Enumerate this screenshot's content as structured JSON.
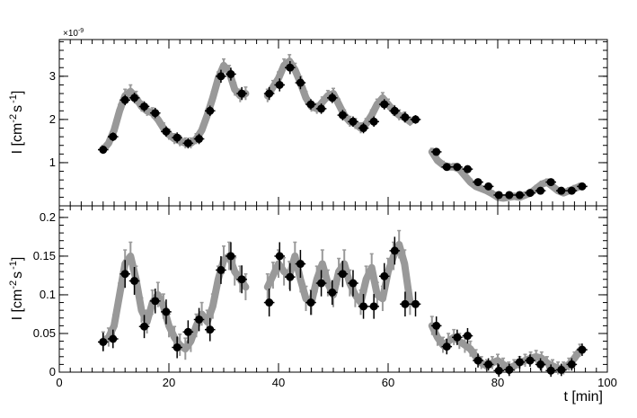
{
  "chart_data": [
    {
      "type": "scatter",
      "panel": "top",
      "ylabel_main": "I [cm",
      "ylabel_exp1": "-2",
      "ylabel_mid": "s",
      "ylabel_exp2": "-1",
      "ylabel_end": "]",
      "scale_note_base": "×10",
      "scale_note_exp": "-9",
      "xlim": [
        0,
        100
      ],
      "ylim": [
        0.0,
        3.85
      ],
      "yticks": [
        "1",
        "2",
        "3"
      ],
      "ytick_values": [
        1,
        2,
        3
      ],
      "series": [
        {
          "style": "band",
          "color": "#999999",
          "x": [
            8,
            9,
            10,
            11,
            12,
            13,
            14,
            15,
            16,
            17,
            18,
            19,
            20,
            21,
            22,
            23,
            24,
            25,
            26,
            27,
            28,
            29,
            30,
            31,
            32,
            33,
            34,
            38,
            39,
            40,
            41,
            42,
            43,
            44,
            45,
            46,
            47,
            48,
            49,
            50,
            51,
            52,
            53,
            54,
            55,
            56,
            57,
            58,
            59,
            60,
            61,
            62,
            63,
            64,
            68,
            69,
            70,
            71,
            72,
            73,
            74,
            75,
            76,
            77,
            78,
            79,
            80,
            81,
            82,
            83,
            84,
            85,
            86,
            87,
            88,
            89,
            90,
            91,
            92,
            93,
            94,
            95
          ],
          "y": [
            1.3,
            1.45,
            1.75,
            2.2,
            2.55,
            2.65,
            2.5,
            2.3,
            2.2,
            2.15,
            2.0,
            1.8,
            1.65,
            1.55,
            1.5,
            1.45,
            1.45,
            1.55,
            1.75,
            2.1,
            2.5,
            2.95,
            3.25,
            3.1,
            2.7,
            2.55,
            2.6,
            2.55,
            2.75,
            2.95,
            3.25,
            3.35,
            3.15,
            2.85,
            2.5,
            2.3,
            2.25,
            2.4,
            2.55,
            2.6,
            2.35,
            2.1,
            1.95,
            1.9,
            1.8,
            1.9,
            2.1,
            2.35,
            2.5,
            2.35,
            2.2,
            2.1,
            2.05,
            1.95,
            1.25,
            1.05,
            0.95,
            0.9,
            0.9,
            0.85,
            0.7,
            0.55,
            0.45,
            0.4,
            0.35,
            0.28,
            0.2,
            0.18,
            0.2,
            0.22,
            0.2,
            0.25,
            0.3,
            0.4,
            0.5,
            0.55,
            0.45,
            0.35,
            0.3,
            0.35,
            0.4,
            0.45
          ],
          "err": [
            0.1,
            0.1,
            0.12,
            0.15,
            0.15,
            0.15,
            0.15,
            0.12,
            0.12,
            0.12,
            0.12,
            0.12,
            0.12,
            0.12,
            0.12,
            0.12,
            0.12,
            0.12,
            0.12,
            0.15,
            0.15,
            0.15,
            0.15,
            0.15,
            0.15,
            0.15,
            0.15,
            0.15,
            0.15,
            0.15,
            0.15,
            0.15,
            0.15,
            0.15,
            0.15,
            0.12,
            0.12,
            0.12,
            0.12,
            0.12,
            0.12,
            0.12,
            0.12,
            0.12,
            0.12,
            0.12,
            0.12,
            0.12,
            0.12,
            0.12,
            0.12,
            0.12,
            0.12,
            0.1,
            0.08,
            0.08,
            0.08,
            0.08,
            0.08,
            0.08,
            0.08,
            0.08,
            0.07,
            0.07,
            0.07,
            0.07,
            0.07,
            0.07,
            0.07,
            0.07,
            0.07,
            0.07,
            0.07,
            0.07,
            0.07,
            0.07,
            0.07,
            0.07,
            0.07,
            0.07,
            0.07,
            0.07
          ]
        },
        {
          "style": "points",
          "color": "#000000",
          "x": [
            8,
            9.8,
            12,
            13.7,
            15.5,
            17.5,
            19.5,
            21.5,
            23.5,
            25.5,
            27.5,
            29.5,
            31.3,
            33.3,
            38.3,
            40.2,
            42.1,
            44,
            45.9,
            47.8,
            49.8,
            51.7,
            53.6,
            55.5,
            57.4,
            59.3,
            61.2,
            63.1,
            65,
            68.8,
            70.7,
            72.6,
            74.5,
            76.4,
            78.3,
            80.2,
            82.1,
            84,
            85.9,
            87.8,
            89.7,
            91.6,
            93.5,
            95.4
          ],
          "y": [
            1.3,
            1.6,
            2.45,
            2.5,
            2.3,
            2.15,
            1.72,
            1.58,
            1.45,
            1.55,
            2.2,
            3.0,
            3.05,
            2.6,
            2.6,
            2.8,
            3.2,
            2.85,
            2.35,
            2.25,
            2.5,
            2.1,
            1.95,
            1.8,
            1.95,
            2.35,
            2.2,
            2.05,
            2.0,
            1.25,
            0.9,
            0.9,
            0.85,
            0.55,
            0.45,
            0.25,
            0.25,
            0.25,
            0.3,
            0.35,
            0.55,
            0.35,
            0.35,
            0.45
          ],
          "xerr": 0.95,
          "yerr": [
            0.08,
            0.1,
            0.12,
            0.12,
            0.12,
            0.12,
            0.12,
            0.12,
            0.12,
            0.12,
            0.12,
            0.15,
            0.15,
            0.15,
            0.15,
            0.15,
            0.15,
            0.15,
            0.12,
            0.12,
            0.12,
            0.12,
            0.12,
            0.12,
            0.12,
            0.12,
            0.12,
            0.12,
            0.1,
            0.08,
            0.08,
            0.08,
            0.08,
            0.07,
            0.07,
            0.07,
            0.07,
            0.07,
            0.07,
            0.07,
            0.07,
            0.07,
            0.07,
            0.07
          ]
        }
      ]
    },
    {
      "type": "scatter",
      "panel": "bottom",
      "ylabel_main": "I [cm",
      "ylabel_exp1": "-2",
      "ylabel_mid": "s",
      "ylabel_exp2": "-1",
      "ylabel_end": "]",
      "xlabel": "t [min]",
      "xlim": [
        0,
        100
      ],
      "ylim": [
        0.0,
        0.215
      ],
      "xticks": [
        "0",
        "20",
        "40",
        "60",
        "80",
        "100"
      ],
      "xtick_values": [
        0,
        20,
        40,
        60,
        80,
        100
      ],
      "yticks": [
        "0",
        "0.05",
        "0.1",
        "0.15",
        "0.2"
      ],
      "ytick_values": [
        0,
        0.05,
        0.1,
        0.15,
        0.2
      ],
      "series": [
        {
          "style": "band",
          "color": "#999999",
          "x": [
            8,
            9,
            10,
            11,
            12,
            13,
            14,
            15,
            16,
            17,
            18,
            19,
            20,
            21,
            22,
            23,
            24,
            25,
            26,
            27,
            28,
            29,
            30,
            31,
            32,
            33,
            34,
            38,
            39,
            40,
            41,
            42,
            43,
            44,
            45,
            46,
            47,
            48,
            49,
            50,
            51,
            52,
            53,
            54,
            55,
            56,
            57,
            58,
            59,
            60,
            61,
            62,
            63,
            64,
            68,
            69,
            70,
            71,
            72,
            73,
            74,
            75,
            76,
            77,
            78,
            79,
            80,
            81,
            82,
            83,
            84,
            85,
            86,
            87,
            88,
            89,
            90,
            91,
            92,
            93,
            94,
            95
          ],
          "y": [
            0.04,
            0.045,
            0.06,
            0.1,
            0.14,
            0.15,
            0.12,
            0.08,
            0.065,
            0.09,
            0.1,
            0.085,
            0.06,
            0.045,
            0.035,
            0.03,
            0.04,
            0.06,
            0.075,
            0.065,
            0.085,
            0.12,
            0.145,
            0.15,
            0.13,
            0.12,
            0.11,
            0.11,
            0.125,
            0.14,
            0.13,
            0.125,
            0.15,
            0.12,
            0.095,
            0.09,
            0.12,
            0.14,
            0.115,
            0.1,
            0.13,
            0.14,
            0.115,
            0.1,
            0.09,
            0.12,
            0.135,
            0.1,
            0.095,
            0.13,
            0.15,
            0.165,
            0.14,
            0.09,
            0.06,
            0.045,
            0.035,
            0.04,
            0.045,
            0.04,
            0.035,
            0.03,
            0.02,
            0.012,
            0.008,
            0.012,
            0.015,
            0.01,
            0.005,
            0.008,
            0.012,
            0.015,
            0.018,
            0.02,
            0.018,
            0.012,
            0.008,
            0.005,
            0.005,
            0.01,
            0.018,
            0.028
          ],
          "err": [
            0.012,
            0.012,
            0.014,
            0.015,
            0.018,
            0.018,
            0.017,
            0.016,
            0.015,
            0.016,
            0.016,
            0.016,
            0.015,
            0.014,
            0.014,
            0.014,
            0.014,
            0.015,
            0.015,
            0.015,
            0.016,
            0.017,
            0.018,
            0.018,
            0.018,
            0.017,
            0.017,
            0.017,
            0.017,
            0.018,
            0.018,
            0.018,
            0.018,
            0.017,
            0.016,
            0.016,
            0.017,
            0.018,
            0.017,
            0.016,
            0.017,
            0.018,
            0.017,
            0.016,
            0.016,
            0.017,
            0.018,
            0.016,
            0.016,
            0.017,
            0.018,
            0.018,
            0.018,
            0.016,
            0.012,
            0.011,
            0.01,
            0.01,
            0.01,
            0.01,
            0.01,
            0.01,
            0.009,
            0.008,
            0.008,
            0.008,
            0.008,
            0.008,
            0.008,
            0.008,
            0.008,
            0.008,
            0.008,
            0.008,
            0.008,
            0.008,
            0.008,
            0.008,
            0.008,
            0.008,
            0.008,
            0.008
          ]
        },
        {
          "style": "points",
          "color": "#000000",
          "x": [
            8,
            9.8,
            12,
            13.7,
            15.5,
            17.5,
            19.5,
            21.5,
            23.5,
            25.5,
            27.5,
            29.5,
            31.3,
            33.3,
            38.3,
            40.2,
            42.1,
            44,
            45.9,
            47.8,
            49.8,
            51.7,
            53.6,
            55.5,
            57.4,
            59.3,
            61.2,
            63.1,
            65,
            68.8,
            70.7,
            72.6,
            74.5,
            76.4,
            78.3,
            80.2,
            82.1,
            84,
            85.9,
            87.8,
            89.7,
            91.6,
            93.5,
            95.4
          ],
          "y": [
            0.039,
            0.043,
            0.127,
            0.118,
            0.059,
            0.092,
            0.078,
            0.032,
            0.052,
            0.068,
            0.055,
            0.132,
            0.15,
            0.12,
            0.09,
            0.15,
            0.123,
            0.14,
            0.09,
            0.115,
            0.103,
            0.127,
            0.115,
            0.085,
            0.085,
            0.124,
            0.157,
            0.088,
            0.088,
            0.06,
            0.033,
            0.045,
            0.047,
            0.015,
            0.01,
            0.002,
            0.003,
            0.013,
            0.015,
            0.01,
            0.002,
            0.003,
            0.01,
            0.029
          ],
          "xerr": 0.95,
          "yerr": [
            0.012,
            0.012,
            0.018,
            0.018,
            0.015,
            0.016,
            0.016,
            0.014,
            0.015,
            0.015,
            0.015,
            0.018,
            0.018,
            0.018,
            0.018,
            0.018,
            0.018,
            0.018,
            0.016,
            0.017,
            0.016,
            0.017,
            0.017,
            0.016,
            0.016,
            0.017,
            0.018,
            0.016,
            0.016,
            0.012,
            0.01,
            0.01,
            0.01,
            0.009,
            0.008,
            0.008,
            0.008,
            0.008,
            0.008,
            0.008,
            0.008,
            0.008,
            0.008,
            0.008
          ]
        }
      ]
    }
  ]
}
